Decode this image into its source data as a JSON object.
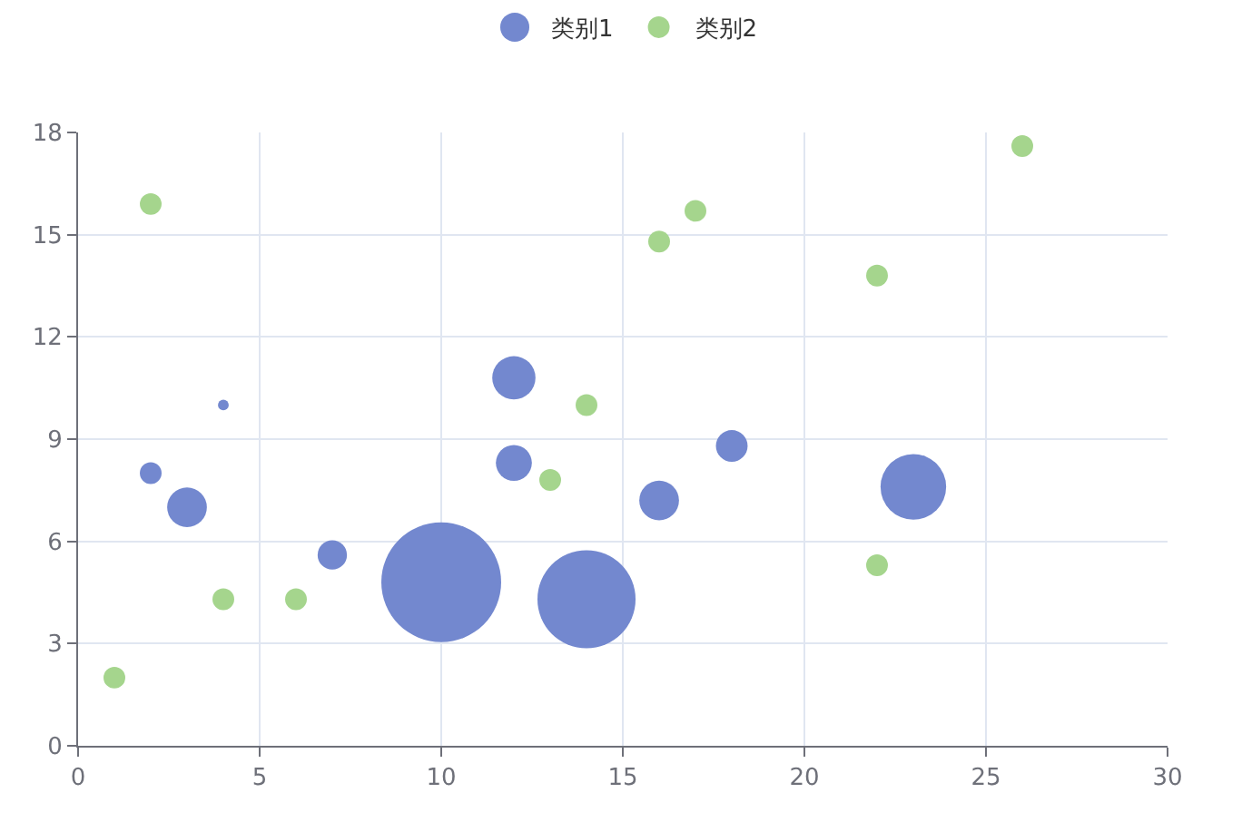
{
  "chart_data": {
    "type": "bubble",
    "series": [
      {
        "name": "类别1",
        "color": "#7388cf",
        "x": [
          4,
          2,
          3,
          7,
          10,
          12,
          12,
          14,
          16,
          18,
          23
        ],
        "values": [
          10,
          8,
          7,
          5.6,
          4.8,
          10.8,
          8.3,
          4.3,
          7.2,
          8.8,
          7.6
        ],
        "sizes": [
          0.008,
          0.033,
          0.11,
          0.06,
          1,
          0.13,
          0.09,
          0.67,
          0.11,
          0.07,
          0.3
        ]
      },
      {
        "name": "类别2",
        "color": "#a5d58d",
        "x": [
          1,
          2,
          4,
          6,
          13,
          14,
          16,
          17,
          22,
          22,
          26
        ],
        "values": [
          2,
          15.9,
          4.3,
          4.3,
          7.8,
          10,
          14.8,
          15.7,
          13.8,
          5.3,
          17.6
        ],
        "sizes": [
          0.033,
          0.033,
          0.033,
          0.033,
          0.033,
          0.033,
          0.033,
          0.033,
          0.033,
          0.033,
          0.033
        ]
      }
    ],
    "xlim": [
      0,
      30
    ],
    "xticks": [
      0,
      5,
      10,
      15,
      20,
      25,
      30
    ],
    "ylim": [
      0,
      18
    ],
    "yticks": [
      0,
      3,
      6,
      9,
      12,
      15,
      18
    ],
    "grid": true,
    "legend": "top"
  }
}
